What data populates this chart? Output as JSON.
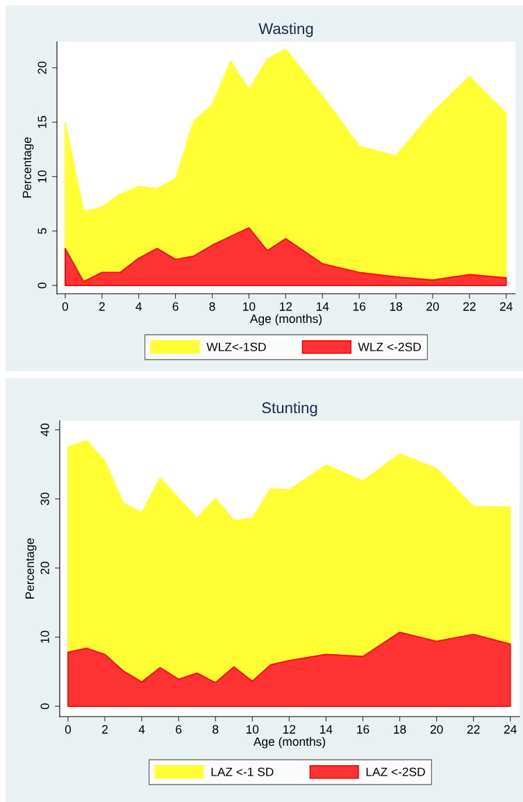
{
  "chart_data": [
    {
      "type": "area",
      "title": "Wasting",
      "xlabel": "Age (months)",
      "ylabel": "Percentage",
      "x": [
        0,
        1,
        2,
        3,
        4,
        5,
        6,
        7,
        8,
        9,
        10,
        11,
        12,
        14,
        16,
        18,
        20,
        22,
        24
      ],
      "series": [
        {
          "name": "WLZ<-1SD",
          "color": "#ffff33",
          "values": [
            15.0,
            6.8,
            7.2,
            8.4,
            9.1,
            8.9,
            9.8,
            15.1,
            16.6,
            20.6,
            18.0,
            20.8,
            21.7,
            17.4,
            12.8,
            11.9,
            15.9,
            19.2,
            15.8
          ]
        },
        {
          "name": "WLZ <-2SD",
          "color": "#ff3333",
          "values": [
            3.4,
            0.35,
            1.2,
            1.2,
            2.5,
            3.4,
            2.4,
            2.7,
            3.7,
            4.5,
            5.3,
            3.2,
            4.3,
            2.0,
            1.2,
            0.8,
            0.5,
            1.0,
            0.7
          ]
        }
      ],
      "xlim": [
        -0.45,
        24.5
      ],
      "ylim": [
        -0.76,
        22.4
      ],
      "xticks": [
        0,
        2,
        4,
        6,
        8,
        10,
        12,
        14,
        16,
        18,
        20,
        22,
        24
      ],
      "yticks": [
        0,
        5,
        10,
        15,
        20
      ],
      "legend": "bottom",
      "grid": false
    },
    {
      "type": "area",
      "title": "Stunting",
      "xlabel": "Age (months)",
      "ylabel": "Percentage",
      "x": [
        0,
        1,
        2,
        3,
        4,
        5,
        6,
        7,
        8,
        9,
        10,
        11,
        12,
        14,
        16,
        18,
        20,
        22,
        24
      ],
      "series": [
        {
          "name": "LAZ <-1 SD",
          "color": "#ffff33",
          "values": [
            37.5,
            38.4,
            35.5,
            29.4,
            28.0,
            33.0,
            30.1,
            27.2,
            30.1,
            26.9,
            27.2,
            31.5,
            31.3,
            34.9,
            32.6,
            36.5,
            34.4,
            28.9,
            28.8
          ]
        },
        {
          "name": "LAZ <-2SD",
          "color": "#ff3333",
          "values": [
            7.8,
            8.4,
            7.5,
            5.1,
            3.5,
            5.6,
            3.9,
            4.8,
            3.4,
            5.7,
            3.6,
            6.0,
            6.6,
            7.5,
            7.2,
            10.7,
            9.4,
            10.4,
            9.0
          ]
        }
      ],
      "xlim": [
        -0.45,
        24.5
      ],
      "ylim": [
        -1.5,
        41.3
      ],
      "xticks": [
        0,
        2,
        4,
        6,
        8,
        10,
        12,
        14,
        16,
        18,
        20,
        22,
        24
      ],
      "yticks": [
        0,
        10,
        20,
        30,
        40
      ],
      "legend": "bottom",
      "grid": false
    }
  ]
}
